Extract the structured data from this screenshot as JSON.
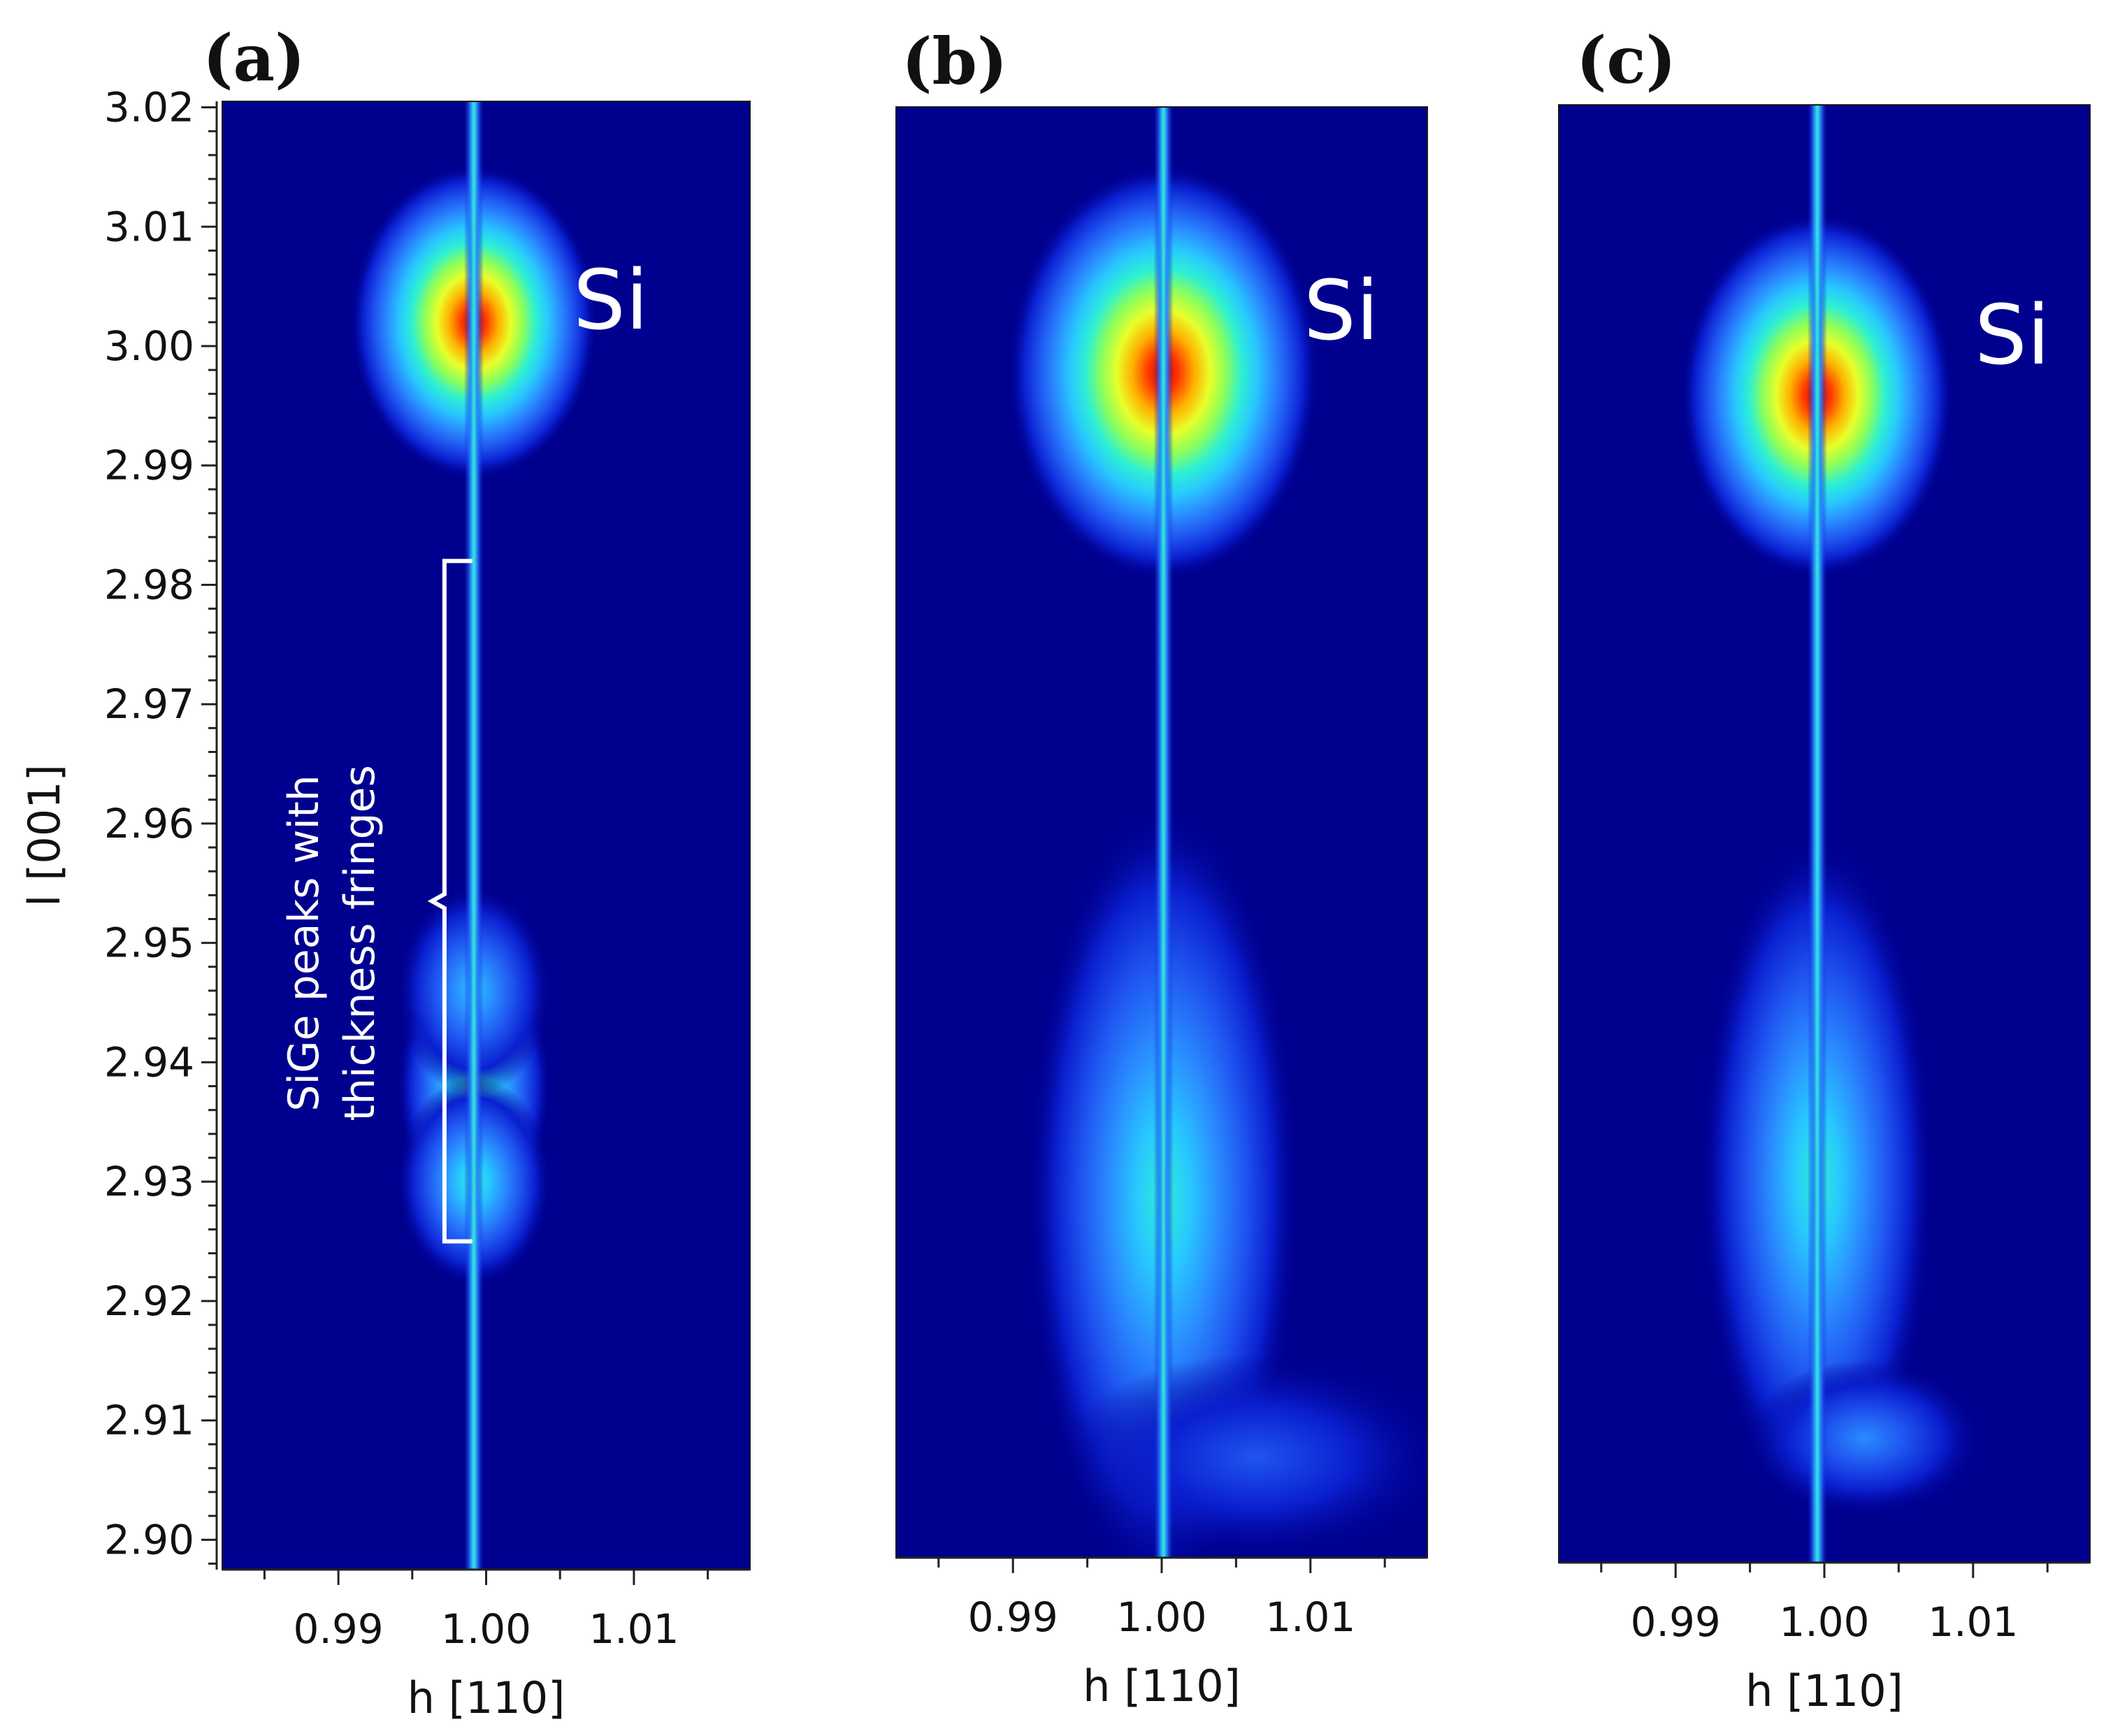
{
  "chart_data": [
    {
      "type": "heatmap",
      "panel": "(a)",
      "xlabel": "h [110]",
      "ylabel": "l [001]",
      "x_ticks": [
        "0.99",
        "1.00",
        "1.01"
      ],
      "y_ticks": [
        "3.02",
        "3.01",
        "3.00",
        "2.99",
        "2.98",
        "2.97",
        "2.96",
        "2.95",
        "2.94",
        "2.93",
        "2.92",
        "2.91",
        "2.90"
      ],
      "xlim": [
        0.9857,
        1.0157
      ],
      "ylim": [
        2.8975,
        3.0205
      ],
      "colormap": [
        "#00008f",
        "#0a1fd0",
        "#1f55f0",
        "#2a8cff",
        "#28c8ff",
        "#2ef0d2",
        "#8cff5a",
        "#e8ff2a",
        "#ffb000",
        "#ff3a00",
        "#cc0000"
      ],
      "label_region": "Si",
      "annotation": {
        "lines": [
          "SiGe peaks with",
          "thickness fringes"
        ],
        "bracket_l_range": [
          2.925,
          2.982
        ]
      },
      "features": [
        {
          "feature": "Si substrate peak",
          "h": 1.0,
          "l": 3.002,
          "intensity": 1.0,
          "h_width": 0.0032,
          "l_width": 0.006
        },
        {
          "feature": "SiGe layer peak",
          "h": 1.0,
          "l": 2.938,
          "intensity": 0.55,
          "h_width": 0.002,
          "l_width": 0.005
        },
        {
          "feature": "SiGe layer peak",
          "h": 1.0,
          "l": 2.93,
          "intensity": 0.45,
          "h_width": 0.002,
          "l_width": 0.004
        },
        {
          "feature": "SiGe layer peak",
          "h": 1.0,
          "l": 2.946,
          "intensity": 0.42,
          "h_width": 0.002,
          "l_width": 0.004
        }
      ]
    },
    {
      "type": "heatmap",
      "panel": "(b)",
      "xlabel": "h [110]",
      "x_ticks": [
        "0.99",
        "1.00",
        "1.01"
      ],
      "xlim": [
        0.9857,
        1.0157
      ],
      "ylim": [
        2.8975,
        3.0205
      ],
      "label_region": "Si",
      "features": [
        {
          "feature": "Si substrate peak",
          "h": 1.0008,
          "l": 2.998,
          "intensity": 1.0,
          "h_width": 0.004,
          "l_width": 0.008
        },
        {
          "feature": "SiGe layer peak",
          "h": 1.0008,
          "l": 2.928,
          "intensity": 0.5,
          "h_width": 0.0035,
          "l_width": 0.015
        },
        {
          "feature": "Diffuse tail",
          "h": 1.006,
          "l": 2.906,
          "intensity": 0.2,
          "h_width": 0.005,
          "l_width": 0.004
        }
      ]
    },
    {
      "type": "heatmap",
      "panel": "(c)",
      "xlabel": "h [110]",
      "x_ticks": [
        "0.99",
        "1.00",
        "1.01"
      ],
      "xlim": [
        0.9857,
        1.0157
      ],
      "ylim": [
        2.8975,
        3.0205
      ],
      "label_region": "Si",
      "features": [
        {
          "feature": "Si substrate peak",
          "h": 1.0003,
          "l": 2.996,
          "intensity": 1.0,
          "h_width": 0.0035,
          "l_width": 0.007
        },
        {
          "feature": "SiGe layer peak",
          "h": 1.0003,
          "l": 2.93,
          "intensity": 0.45,
          "h_width": 0.003,
          "l_width": 0.013
        },
        {
          "feature": "Diffuse tail",
          "h": 1.003,
          "l": 2.908,
          "intensity": 0.25,
          "h_width": 0.003,
          "l_width": 0.003
        }
      ]
    }
  ]
}
